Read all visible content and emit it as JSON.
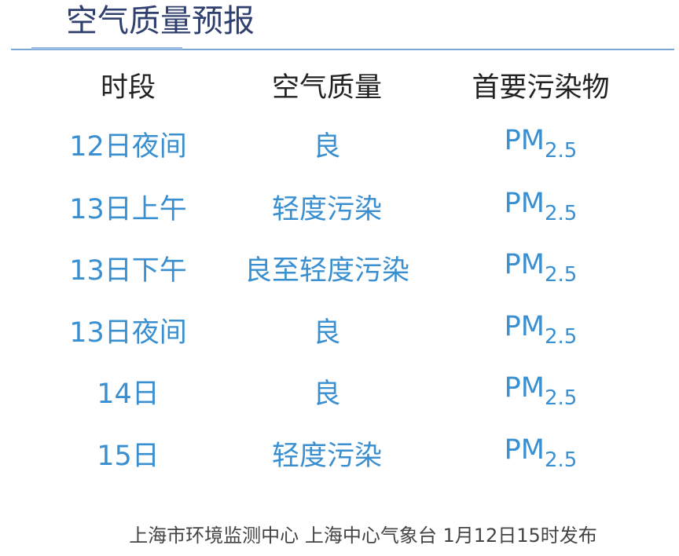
{
  "title": "空气质量预报",
  "headers": [
    "时段",
    "空气质量",
    "首要污染物"
  ],
  "rows": [
    {
      "period": "12日夜间",
      "quality": "良",
      "pollutant": "PM",
      "pollutant_sub": "2.5"
    },
    {
      "period": "13日上午",
      "quality": "轻度污染",
      "pollutant": "PM",
      "pollutant_sub": "2.5"
    },
    {
      "period": "13日下午",
      "quality": "良至轻度污染",
      "pollutant": "PM",
      "pollutant_sub": "2.5"
    },
    {
      "period": "13日夜间",
      "quality": "良",
      "pollutant": "PM",
      "pollutant_sub": "2.5"
    },
    {
      "period": "14日",
      "quality": "良",
      "pollutant": "PM",
      "pollutant_sub": "2.5"
    },
    {
      "period": "15日",
      "quality": "轻度污染",
      "pollutant": "PM",
      "pollutant_sub": "2.5"
    }
  ],
  "footer": "上海市环境监测中心 上海中心气象台 1月12日15时发布",
  "colors": {
    "title": "#2f3f6e",
    "value_text": "#3a8fd0",
    "rule": "#7aa6d6"
  }
}
